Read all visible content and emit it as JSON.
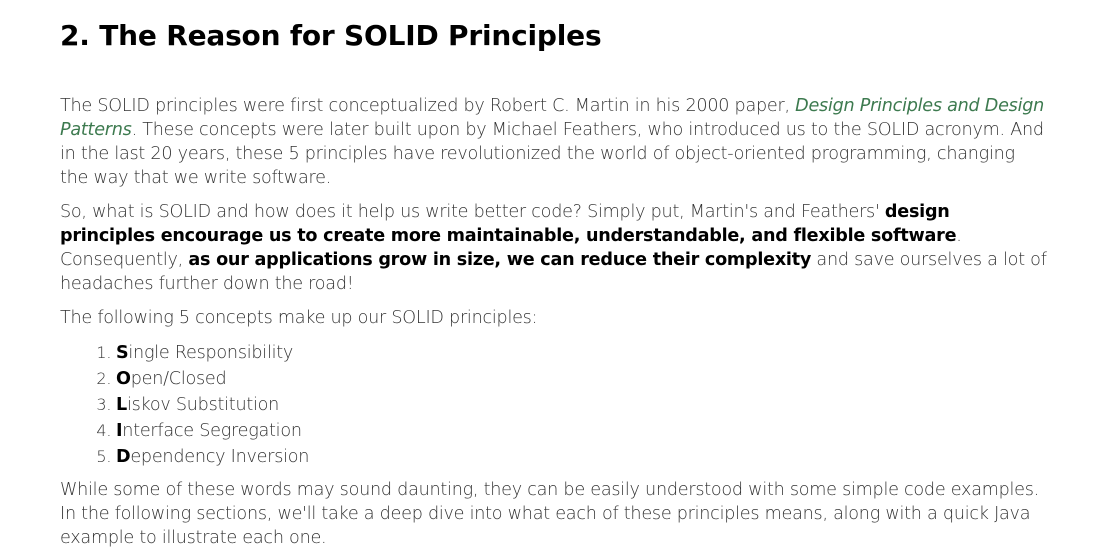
{
  "heading": "2. The Reason for SOLID Principles",
  "para1": {
    "before_link": "The SOLID principles were first conceptualized by Robert C. Martin in his 2000 paper, ",
    "link_text": "Design Principles and Design Patterns",
    "after_link": ". These concepts were later built upon by Michael Feathers, who introduced us to the SOLID acronym. And in the last 20 years, these 5 principles have revolutionized the world of object-oriented programming, changing the way that we write software."
  },
  "para2": {
    "part1": "So, what is SOLID and how does it help us write better code? Simply put, Martin's and Feathers' ",
    "bold1": "design principles encourage us to create more maintainable, understandable, and flexible software",
    "part2": ". Consequently, ",
    "bold2": "as our applications grow in size, we can reduce their complexity",
    "part3": " and save ourselves a lot of headaches further down the road!"
  },
  "para3": "The following 5 concepts make up our SOLID principles:",
  "principles": [
    {
      "letter": "S",
      "rest": "ingle Responsibility"
    },
    {
      "letter": "O",
      "rest": "pen/Closed"
    },
    {
      "letter": "L",
      "rest": "iskov Substitution"
    },
    {
      "letter": "I",
      "rest": "nterface Segregation"
    },
    {
      "letter": "D",
      "rest": "ependency Inversion"
    }
  ],
  "para4": "While some of these words may sound daunting, they can be easily understood with some simple code examples. In the following sections, we'll take a deep dive into what each of these principles means, along with a quick Java example to illustrate each one.",
  "colors": {
    "link": "#3d7a4f",
    "heading": "#000000",
    "body_text": "#333333"
  }
}
